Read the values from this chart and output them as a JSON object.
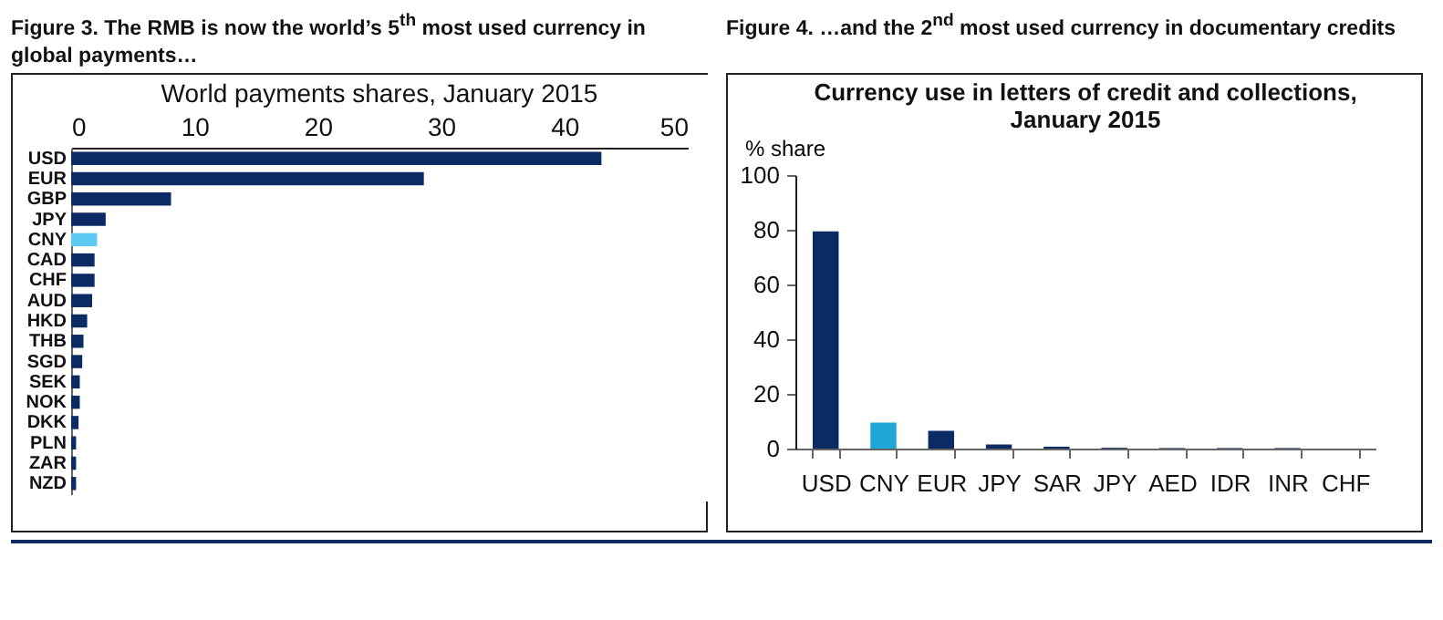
{
  "chart_data": [
    {
      "type": "bar",
      "title": "Figure 3. The RMB is now the world’s 5$^{th}$ most used currency in global payments…",
      "subtitle": "World payments shares, January 2015",
      "orientation": "horizontal",
      "categories": [
        "USD",
        "EUR",
        "GBP",
        "JPY",
        "CNY",
        "CAD",
        "CHF",
        "AUD",
        "HKD",
        "THB",
        "SGD",
        "SEK",
        "NOK",
        "DKK",
        "PLN",
        "ZAR",
        "NZD"
      ],
      "values": [
        43.0,
        28.6,
        8.1,
        2.8,
        2.1,
        1.9,
        1.9,
        1.7,
        1.3,
        1.0,
        0.9,
        0.7,
        0.7,
        0.6,
        0.4,
        0.4,
        0.4
      ],
      "colors": [
        "#0c2a63",
        "#0c2a63",
        "#0c2a63",
        "#0c2a63",
        "#5ccaf2",
        "#0c2a63",
        "#0c2a63",
        "#0c2a63",
        "#0c2a63",
        "#0c2a63",
        "#0c2a63",
        "#0c2a63",
        "#0c2a63",
        "#0c2a63",
        "#0c2a63",
        "#0c2a63",
        "#0c2a63"
      ],
      "xlim": [
        0,
        50
      ],
      "xticks": [
        0,
        10,
        20,
        30,
        40,
        50
      ],
      "grid": false,
      "legend": false
    },
    {
      "type": "bar",
      "title": "Figure 4. …and the 2$^{nd}$ most used currency in documentary credits",
      "subtitle": "Currency use in letters of credit and collections,\nJanuary 2015",
      "ylabel": "% share",
      "categories": [
        "USD",
        "CNY",
        "EUR",
        "JPY",
        "SAR",
        "JPY",
        "AED",
        "IDR",
        "INR",
        "CHF"
      ],
      "values": [
        79.4,
        9.5,
        6.5,
        1.5,
        0.7,
        0.3,
        0.2,
        0.2,
        0.2,
        null
      ],
      "colors": [
        "#0c2a63",
        "#1ea6d8",
        "#0c2a63",
        "#0c2a63",
        "#0c2a63",
        "#0c2a63",
        "#0c2a63",
        "#0c2a63",
        "#0c2a63",
        "#0c2a63"
      ],
      "ylim": [
        0,
        100
      ],
      "yticks": [
        0,
        20,
        40,
        60,
        80,
        100
      ],
      "grid": false,
      "legend": false
    }
  ]
}
